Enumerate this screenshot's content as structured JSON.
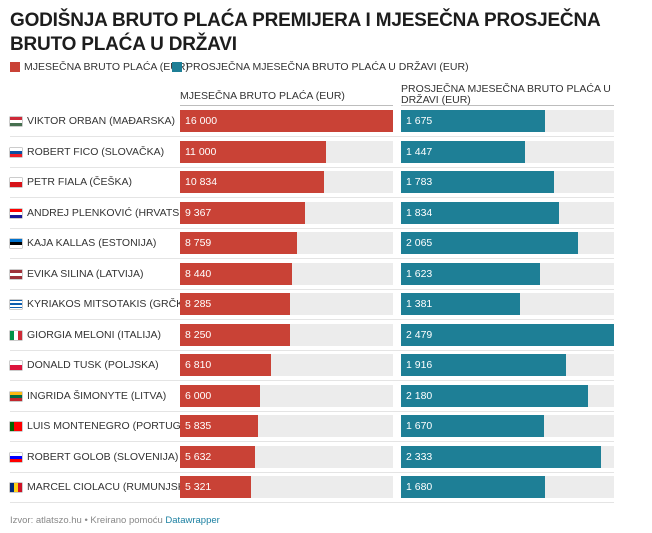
{
  "title": "GODIŠNJA BRUTO PLAĆA PREMIJERA I MJESEČNA PROSJEČNA BRUTO PLAĆA U DRŽAVI",
  "colors": {
    "pm": "#c94236",
    "avg": "#1e7f96",
    "track": "#ececec"
  },
  "legend": [
    {
      "label": "MJESEČNA BRUTO PLAĆA (EUR)",
      "color": "#c94236"
    },
    {
      "label": "PROSJEČNA MJESEČNA BRUTO PLAĆA U DRŽAVI (EUR)",
      "color": "#1e7f96"
    }
  ],
  "chart_data": {
    "type": "bar",
    "title": "GODIŠNJA BRUTO PLAĆA PREMIJERA I MJESEČNA PROSJEČNA BRUTO PLAĆA U DRŽAVI",
    "categories": [
      "VIKTOR ORBAN (MAĐARSKA)",
      "ROBERT FICO (SLOVAČKA)",
      "PETR FIALA (ČEŠKA)",
      "ANDREJ PLENKOVIĆ (HRVATSKA)",
      "KAJA KALLAS (ESTONIJA)",
      "EVIKA SILINA (LATVIJA)",
      "KYRIAKOS MITSOTAKIS (GRČKA)",
      "GIORGIA MELONI (ITALIJA)",
      "DONALD TUSK (POLJSKA)",
      "INGRIDA ŠIMONYTE (LITVA)",
      "LUIS MONTENEGRO (PORTUGAL)",
      "ROBERT GOLOB (SLOVENIJA)",
      "MARCEL CIOLACU (RUMUNJSKA)"
    ],
    "flags": [
      "hu",
      "sk",
      "cz",
      "hr",
      "ee",
      "lv",
      "gr",
      "it",
      "pl",
      "lt",
      "pt",
      "si",
      "ro"
    ],
    "series": [
      {
        "name": "MJESEČNA BRUTO PLAĆA (EUR)",
        "color": "#c94236",
        "values": [
          16000,
          11000,
          10834,
          9367,
          8759,
          8440,
          8285,
          8250,
          6810,
          6000,
          5835,
          5632,
          5321
        ],
        "labels": [
          "16 000",
          "11 000",
          "10 834",
          "9 367",
          "8 759",
          "8 440",
          "8 285",
          "8 250",
          "6 810",
          "6 000",
          "5 835",
          "5 632",
          "5 321"
        ],
        "max": 16000
      },
      {
        "name": "PROSJEČNA MJESEČNA BRUTO PLAĆA U DRŽAVI (EUR)",
        "color": "#1e7f96",
        "values": [
          1675,
          1447,
          1783,
          1834,
          2065,
          1623,
          1381,
          2479,
          1916,
          2180,
          1670,
          2333,
          1680
        ],
        "labels": [
          "1 675",
          "1 447",
          "1 783",
          "1 834",
          "2 065",
          "1 623",
          "1 381",
          "2 479",
          "1 916",
          "2 180",
          "1 670",
          "2 333",
          "1 680"
        ],
        "max": 2479
      }
    ]
  },
  "columns": {
    "pm_header": "MJESEČNA BRUTO PLAĆA (EUR)",
    "avg_header": "PROSJEČNA MJESEČNA BRUTO PLAĆA U DRŽAVI (EUR)"
  },
  "footer": {
    "source_prefix": "Izvor: atlatszo.hu • Kreirano pomoću",
    "source_link": "Datawrapper"
  }
}
